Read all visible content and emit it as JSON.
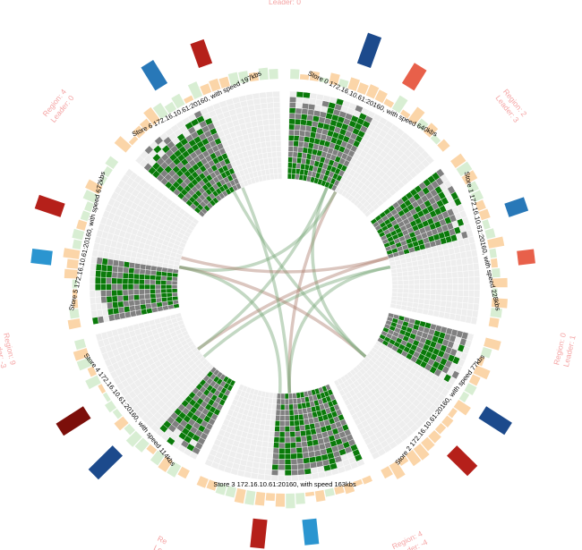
{
  "colors": {
    "sector_bg": "#eeeeee",
    "sector_grid": "#ffffff",
    "region_used": "#808080",
    "region_leader": "#0a7a0a",
    "heat_orange": "#fbd5a8",
    "heat_green": "#d8eed3",
    "chord_green": "#7aa87a",
    "chord_brown": "#b08070"
  },
  "stores": [
    {
      "label": "Store 0 172.16.10.61:20160, with speed 640kbs",
      "fill": 0.55,
      "bars": [
        {
          "color": "#1c4a8c",
          "value": 0.95
        },
        {
          "color": "#e8604a",
          "value": 0.7
        }
      ]
    },
    {
      "label": "Store 1 172.16.10.61:20160, with speed 228kbs",
      "fill": 0.45,
      "bars": [
        {
          "color": "#2878b8",
          "value": 0.6
        },
        {
          "color": "#e8604a",
          "value": 0.5
        }
      ]
    },
    {
      "label": "Store 2 172.16.10.61:20160, with speed 77kbs",
      "fill": 0.35,
      "bars": [
        {
          "color": "#1c4a8c",
          "value": 0.9
        },
        {
          "color": "#b5201a",
          "value": 0.85
        }
      ]
    },
    {
      "label": "Store 3 172.16.10.61:20160, with speed 163kbs",
      "fill": 0.6,
      "bars": [
        {
          "color": "#2b95d0",
          "value": 0.75
        },
        {
          "color": "#b5201a",
          "value": 0.85
        }
      ]
    },
    {
      "label": "Store 4 172.16.10.61:20160, with speed 114kbs",
      "fill": 0.3,
      "bars": [
        {
          "color": "#1c4a8c",
          "value": 1.0
        },
        {
          "color": "#7c0f0a",
          "value": 0.95
        }
      ]
    },
    {
      "label": "Store 5 172.16.10.61:20160, with speed 672kbs",
      "fill": 0.4,
      "bars": [
        {
          "color": "#2b95d0",
          "value": 0.6
        },
        {
          "color": "#b5201a",
          "value": 0.8
        }
      ]
    },
    {
      "label": "Store 6 172.16.10.61:20160, with speed 197kbs",
      "fill": 0.55,
      "bars": [
        {
          "color": "#2878b8",
          "value": 0.8
        },
        {
          "color": "#b5201a",
          "value": 0.75
        }
      ]
    }
  ],
  "regions": [
    {
      "region": "Region: 2",
      "leader": "Leader: 3"
    },
    {
      "region": "Region: 0",
      "leader": "Leader: 1"
    },
    {
      "region": "Region: 4",
      "leader": "Leader: -4"
    },
    {
      "region": "Re",
      "leader": "Le"
    },
    {
      "region": "Region: 9",
      "leader": "Leader: -3"
    },
    {
      "region": "Region: 4",
      "leader": "Leader: 0"
    },
    {
      "region": "Region: 4",
      "leader": "Leader: 0"
    }
  ],
  "chords": [
    {
      "from": 0,
      "to": 3,
      "color": "chord_brown"
    },
    {
      "from": 0,
      "to": 5,
      "color": "chord_green"
    },
    {
      "from": 1,
      "to": 4,
      "color": "chord_green"
    },
    {
      "from": 1,
      "to": 3,
      "color": "chord_green"
    },
    {
      "from": 2,
      "to": 5,
      "color": "chord_brown"
    },
    {
      "from": 2,
      "to": 6,
      "color": "chord_green"
    },
    {
      "from": 2,
      "to": 0,
      "color": "chord_green"
    },
    {
      "from": 3,
      "to": 5,
      "color": "chord_green"
    },
    {
      "from": 4,
      "to": 1,
      "color": "chord_brown"
    },
    {
      "from": 4,
      "to": 0,
      "color": "chord_green"
    },
    {
      "from": 6,
      "to": 3,
      "color": "chord_green"
    },
    {
      "from": 5,
      "to": 1,
      "color": "chord_brown"
    }
  ]
}
